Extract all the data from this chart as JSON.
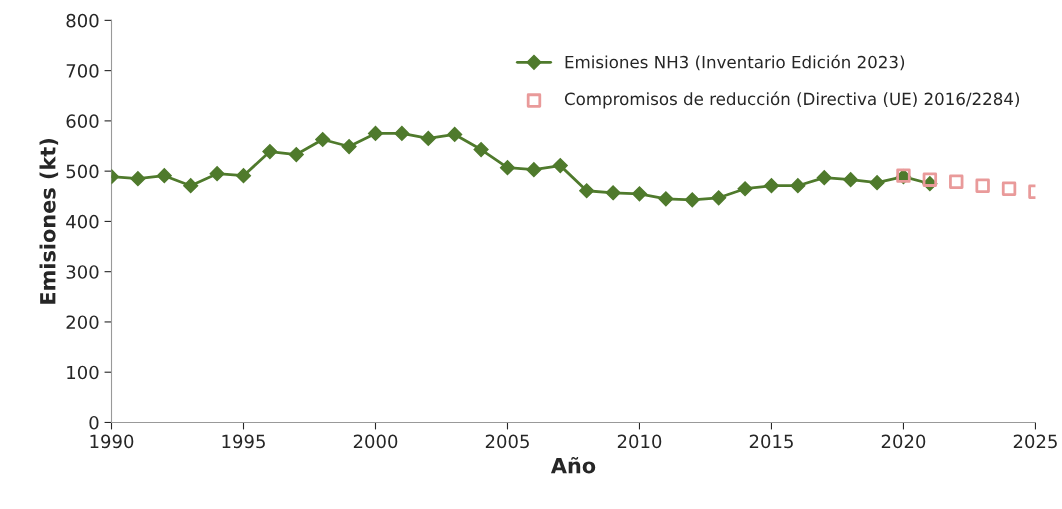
{
  "chart_data": {
    "type": "line",
    "xlabel": "Año",
    "ylabel": "Emisiones (kt)",
    "xlim": [
      1990,
      2025
    ],
    "xticks": [
      1990,
      1995,
      2000,
      2005,
      2010,
      2015,
      2020,
      2025
    ],
    "ylim": [
      0,
      800
    ],
    "yticks": [
      0,
      100,
      200,
      300,
      400,
      500,
      600,
      700,
      800
    ],
    "grid": false,
    "legend": "top right",
    "series": [
      {
        "name": "Emisiones NH3 (Inventario Edición 2023)",
        "marker": "diamond",
        "color": "#4f7a2c",
        "x": [
          1990,
          1991,
          1992,
          1993,
          1994,
          1995,
          1996,
          1997,
          1998,
          1999,
          2000,
          2001,
          2002,
          2003,
          2004,
          2005,
          2006,
          2007,
          2008,
          2009,
          2010,
          2011,
          2012,
          2013,
          2014,
          2015,
          2016,
          2017,
          2018,
          2019,
          2020,
          2021
        ],
        "values": [
          489,
          485,
          491,
          471,
          495,
          491,
          539,
          533,
          563,
          549,
          575,
          575,
          565,
          573,
          543,
          507,
          503,
          511,
          461,
          457,
          455,
          445,
          443,
          447,
          465,
          471,
          471,
          487,
          483,
          477,
          489,
          475
        ]
      },
      {
        "name": "Compromisos de reducción (Directiva (UE) 2016/2284)",
        "type": "scatter",
        "marker": "square",
        "color": "#e99a9a",
        "x": [
          2020,
          2021,
          2022,
          2023,
          2024,
          2025
        ],
        "values": [
          491,
          483,
          479,
          471,
          465,
          459
        ]
      }
    ]
  }
}
